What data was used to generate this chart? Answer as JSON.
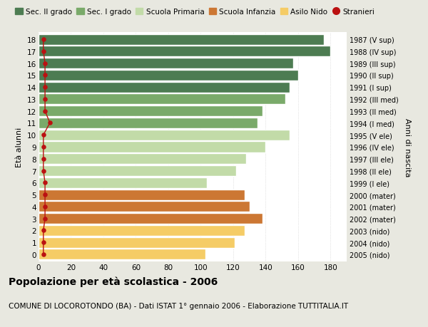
{
  "ages": [
    18,
    17,
    16,
    15,
    14,
    13,
    12,
    11,
    10,
    9,
    8,
    7,
    6,
    5,
    4,
    3,
    2,
    1,
    0
  ],
  "years": [
    "1987 (V sup)",
    "1988 (IV sup)",
    "1989 (III sup)",
    "1990 (II sup)",
    "1991 (I sup)",
    "1992 (III med)",
    "1993 (II med)",
    "1994 (I med)",
    "1995 (V ele)",
    "1996 (IV ele)",
    "1997 (III ele)",
    "1998 (II ele)",
    "1999 (I ele)",
    "2000 (mater)",
    "2001 (mater)",
    "2002 (mater)",
    "2003 (nido)",
    "2004 (nido)",
    "2005 (nido)"
  ],
  "values": [
    176,
    180,
    157,
    160,
    155,
    152,
    138,
    135,
    155,
    140,
    128,
    122,
    104,
    127,
    130,
    138,
    127,
    121,
    103
  ],
  "stranieri": [
    3,
    3,
    4,
    4,
    4,
    4,
    4,
    7,
    3,
    3,
    3,
    3,
    4,
    4,
    4,
    4,
    3,
    3,
    3
  ],
  "colors": {
    "sec2": "#4d7c52",
    "sec1": "#7aaa6a",
    "primaria": "#c2dba8",
    "infanzia": "#cc7733",
    "nido": "#f5cc66",
    "stranieri": "#bb1111"
  },
  "legend_items": [
    {
      "label": "Sec. II grado",
      "color": "#4d7c52",
      "type": "patch"
    },
    {
      "label": "Sec. I grado",
      "color": "#7aaa6a",
      "type": "patch"
    },
    {
      "label": "Scuola Primaria",
      "color": "#c2dba8",
      "type": "patch"
    },
    {
      "label": "Scuola Infanzia",
      "color": "#cc7733",
      "type": "patch"
    },
    {
      "label": "Asilo Nido",
      "color": "#f5cc66",
      "type": "patch"
    },
    {
      "label": "Stranieri",
      "color": "#bb1111",
      "type": "dot"
    }
  ],
  "title": "Popolazione per età scolastica - 2006",
  "subtitle": "COMUNE DI LOCOROTONDO (BA) - Dati ISTAT 1° gennaio 2006 - Elaborazione TUTTITALIA.IT",
  "ylabel_left": "Età alunni",
  "ylabel_right": "Anni di nascita",
  "xlim": [
    0,
    190
  ],
  "bg_outer": "#e8e8e0",
  "bg_plot": "#ffffff",
  "grid_color": "#cccccc"
}
